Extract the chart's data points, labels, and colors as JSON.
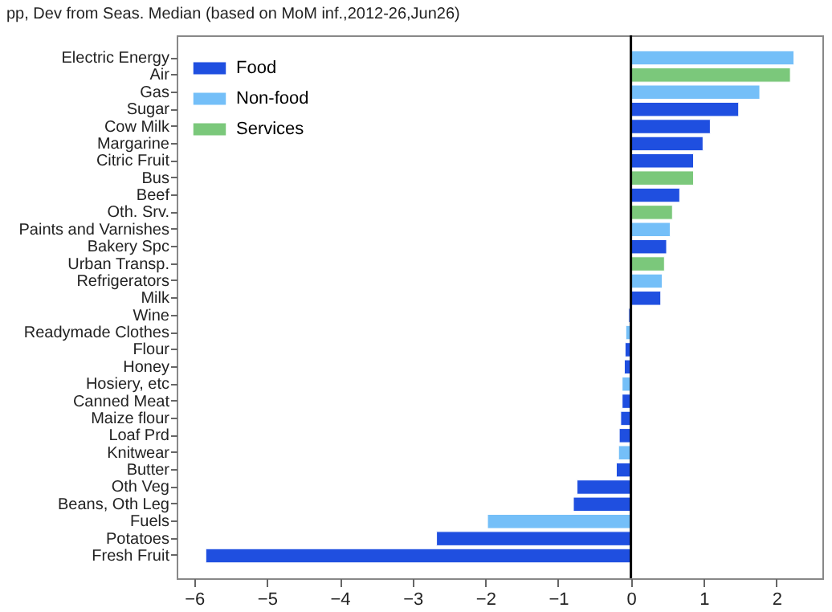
{
  "chart_data": {
    "type": "bar",
    "orientation": "horizontal",
    "title": "pp, Dev from Seas. Median (based on MoM inf.,2012-26,Jun26)",
    "categories": [
      "Electric Energy",
      "Air",
      "Gas",
      "Sugar",
      "Cow Milk",
      "Margarine",
      "Citric Fruit",
      "Bus",
      "Beef",
      "Oth. Srv.",
      "Paints and Varnishes",
      "Bakery Spc",
      "Urban Transp.",
      "Refrigerators",
      "Milk",
      "Wine",
      "Readymade Clothes",
      "Flour",
      "Honey",
      "Hosiery, etc",
      "Canned Meat",
      "Maize flour",
      "Loaf Prd",
      "Knitwear",
      "Butter",
      "Oth Veg",
      "Beans, Oth Leg",
      "Fuels",
      "Potatoes",
      "Fresh Fruit"
    ],
    "series": [
      {
        "name": "Food",
        "color": "#1f4fe0",
        "values": [
          null,
          null,
          null,
          1.48,
          1.09,
          0.99,
          0.86,
          null,
          0.67,
          null,
          null,
          0.49,
          null,
          null,
          0.41,
          -0.03,
          null,
          -0.08,
          -0.09,
          null,
          -0.12,
          -0.14,
          -0.16,
          null,
          -0.2,
          -0.74,
          -0.79,
          null,
          -2.67,
          -5.84
        ]
      },
      {
        "name": "Non-food",
        "color": "#74bff8",
        "values": [
          2.24,
          null,
          1.77,
          null,
          null,
          null,
          null,
          null,
          null,
          null,
          0.54,
          null,
          null,
          0.43,
          null,
          null,
          -0.07,
          null,
          null,
          -0.12,
          null,
          null,
          null,
          -0.17,
          null,
          null,
          null,
          -1.97,
          null,
          null
        ]
      },
      {
        "name": "Services",
        "color": "#7bc87b",
        "values": [
          null,
          2.19,
          null,
          null,
          null,
          null,
          null,
          0.86,
          null,
          0.57,
          null,
          null,
          0.46,
          null,
          null,
          null,
          null,
          null,
          null,
          null,
          null,
          null,
          null,
          null,
          null,
          null,
          null,
          null,
          null,
          null
        ]
      }
    ],
    "xlim": [
      -6.24,
      2.63
    ],
    "xticks": [
      -6,
      -5,
      -4,
      -3,
      -2,
      -1,
      0,
      1,
      2
    ],
    "ref_lines": [
      {
        "axis": "x",
        "value": 0,
        "color": "#000000"
      }
    ],
    "grid": false,
    "legend": "top left"
  }
}
